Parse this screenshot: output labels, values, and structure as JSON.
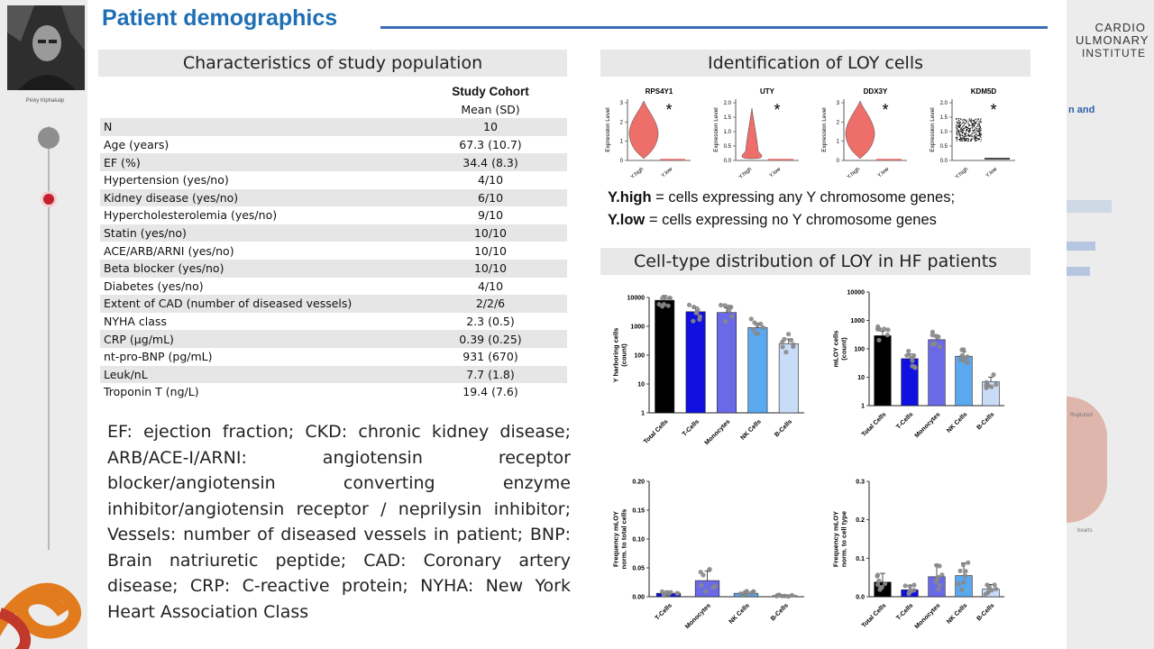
{
  "presenter": {
    "name": "Pinky Klphakalp"
  },
  "institute": {
    "line1": "CARDIO",
    "line2": "ULMONARY",
    "line3": "INSTITUTE"
  },
  "side_fragments": [
    "n and",
    "Ruptured",
    "hearts"
  ],
  "title": "Patient demographics",
  "left_section": {
    "heading": "Characteristics of study population",
    "col_header": "Study Cohort",
    "col_subheader": "Mean (SD)",
    "rows": [
      {
        "label": "N",
        "value": "10"
      },
      {
        "label": "Age (years)",
        "value": "67.3 (10.7)"
      },
      {
        "label": "EF (%)",
        "value": "34.4 (8.3)"
      },
      {
        "label": "Hypertension (yes/no)",
        "value": "4/10"
      },
      {
        "label": "Kidney disease (yes/no)",
        "value": "6/10"
      },
      {
        "label": "Hypercholesterolemia (yes/no)",
        "value": "9/10"
      },
      {
        "label": "Statin (yes/no)",
        "value": "10/10"
      },
      {
        "label": "ACE/ARB/ARNI (yes/no)",
        "value": "10/10"
      },
      {
        "label": "Beta blocker (yes/no)",
        "value": "10/10"
      },
      {
        "label": "Diabetes (yes/no)",
        "value": "4/10"
      },
      {
        "label": "Extent of CAD (number of diseased vessels)",
        "value": "2/2/6"
      },
      {
        "label": "NYHA class",
        "value": "2.3 (0.5)"
      },
      {
        "label": "CRP (µg/mL)",
        "value": "0.39 (0.25)"
      },
      {
        "label": "nt-pro-BNP (pg/mL)",
        "value": "931 (670)"
      },
      {
        "label": "Leuk/nL",
        "value": "7.7 (1.8)"
      },
      {
        "label": "Troponin T (ng/L)",
        "value": "19.4 (7.6)"
      }
    ],
    "abbreviations": "EF: ejection fraction; CKD: chronic kidney disease; ARB/ACE-I/ARNI: angiotensin receptor blocker/angiotensin converting enzyme inhibitor/angiotensin receptor / neprilysin inhibitor; Vessels: number of diseased vessels in patient; BNP: Brain natriuretic peptide; CAD: Coronary artery disease; CRP: C-reactive protein; NYHA: New York Heart Association Class"
  },
  "right_section": {
    "heading1": "Identification of LOY cells",
    "heading2": "Cell-type distribution of LOY in HF patients",
    "legend": {
      "high_term": "Y.high",
      "high_text": " = cells expressing any Y chromosome genes;",
      "low_term": "Y.low",
      "low_text": " = cells expressing no Y chromosome genes"
    }
  },
  "chart_data": [
    {
      "type": "violin",
      "title": "RPS4Y1",
      "ylabel": "Expression Level",
      "categories": [
        "Y.high",
        "Y.low"
      ],
      "yticks": [
        "0",
        "1",
        "2",
        "3"
      ],
      "ylim": [
        0,
        3
      ],
      "annotation": "*"
    },
    {
      "type": "violin",
      "title": "UTY",
      "ylabel": "Expression Level",
      "categories": [
        "Y.high",
        "Y.low"
      ],
      "yticks": [
        "0.0",
        "0.5",
        "1.0",
        "1.5",
        "2.0"
      ],
      "ylim": [
        0,
        2
      ],
      "annotation": "*"
    },
    {
      "type": "violin",
      "title": "DDX3Y",
      "ylabel": "Expression Level",
      "categories": [
        "Y.high",
        "Y.low"
      ],
      "yticks": [
        "0",
        "1",
        "2",
        "3"
      ],
      "ylim": [
        0,
        3
      ],
      "annotation": "*"
    },
    {
      "type": "violin",
      "title": "KDM5D",
      "ylabel": "Expression Level",
      "categories": [
        "Y.high",
        "Y.low"
      ],
      "yticks": [
        "0.0",
        "0.5",
        "1.0",
        "1.5",
        "2.0"
      ],
      "ylim": [
        0,
        2
      ],
      "annotation": "*"
    },
    {
      "type": "bar",
      "scale": "log",
      "ylabel": "Y harboring cells (count)",
      "categories": [
        "Total Cells",
        "T-Cells",
        "Monocytes",
        "NK Cells",
        "B-Cells"
      ],
      "values": [
        8000,
        3200,
        3000,
        900,
        250
      ],
      "colors": [
        "#000000",
        "#1010e0",
        "#6a6ae8",
        "#5aa8ee",
        "#c8dcf8"
      ],
      "yticks": [
        "1",
        "10",
        "100",
        "1000",
        "10000"
      ],
      "ylim": [
        1,
        10000
      ]
    },
    {
      "type": "bar",
      "scale": "log",
      "ylabel": "mLOY cells (count)",
      "categories": [
        "Total Cells",
        "T-Cells",
        "Monocytes",
        "NK Cells",
        "B-Cells"
      ],
      "values": [
        290,
        45,
        210,
        55,
        7
      ],
      "colors": [
        "#000000",
        "#1010e0",
        "#6a6ae8",
        "#5aa8ee",
        "#c8dcf8"
      ],
      "yticks": [
        "1",
        "10",
        "100",
        "1000",
        "10000"
      ],
      "ylim": [
        1,
        10000
      ]
    },
    {
      "type": "bar",
      "scale": "linear",
      "ylabel": "Frequency mLOY norm. to total cells",
      "categories": [
        "T-Cells",
        "Monocytes",
        "NK Cells",
        "B-Cells"
      ],
      "values": [
        0.006,
        0.028,
        0.006,
        0.002
      ],
      "colors": [
        "#1010e0",
        "#6a6ae8",
        "#5aa8ee",
        "#c8dcf8"
      ],
      "yticks": [
        "0.00",
        "0.05",
        "0.10",
        "0.15",
        "0.20"
      ],
      "ylim": [
        0,
        0.2
      ]
    },
    {
      "type": "bar",
      "scale": "linear",
      "ylabel": "Frequency mLOY norm. to cell type",
      "categories": [
        "Total Cells",
        "T-Cells",
        "Monocytes",
        "NK Cells",
        "B-Cells"
      ],
      "values": [
        0.038,
        0.018,
        0.052,
        0.055,
        0.02
      ],
      "colors": [
        "#000000",
        "#1010e0",
        "#6a6ae8",
        "#5aa8ee",
        "#c8dcf8"
      ],
      "yticks": [
        "0.0",
        "0.1",
        "0.2",
        "0.3"
      ],
      "ylim": [
        0,
        0.3
      ]
    }
  ]
}
